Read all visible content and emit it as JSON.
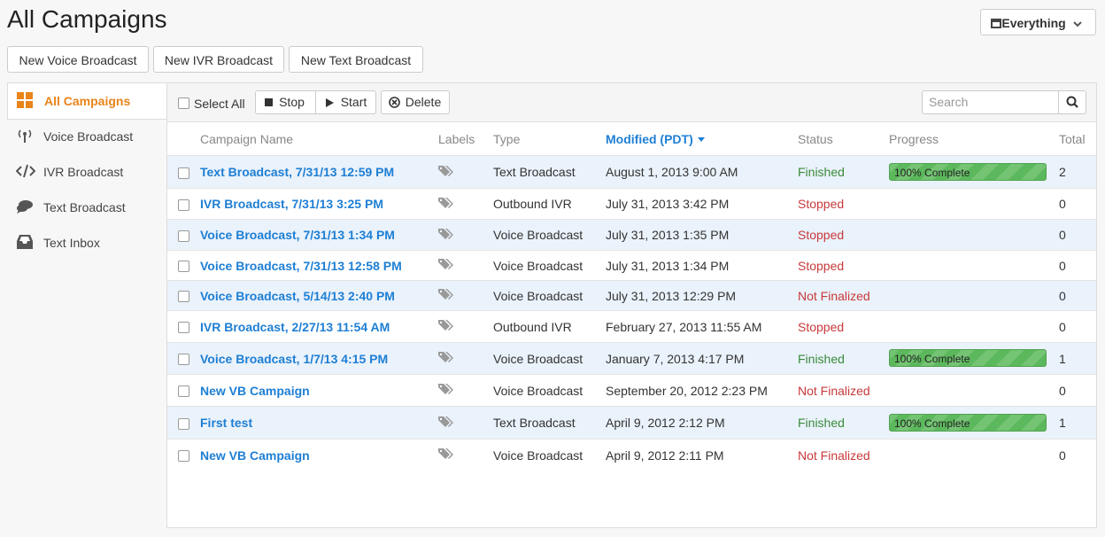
{
  "header": {
    "title": "All Campaigns",
    "filter": "Everything"
  },
  "buttons": [
    "New Voice Broadcast",
    "New IVR Broadcast",
    "New Text Broadcast"
  ],
  "sidebar": [
    "All Campaigns",
    "Voice Broadcast",
    "IVR Broadcast",
    "Text Broadcast",
    "Text Inbox"
  ],
  "toolbar": {
    "select_all": "Select All",
    "stop": "Stop",
    "start": "Start",
    "delete": "Delete",
    "search": "Search"
  },
  "table": {
    "columns": [
      "Campaign Name",
      "Labels",
      "Type",
      "Modified (PDT)",
      "Status",
      "Progress",
      "Total"
    ],
    "rows": [
      {
        "name": "Text Broadcast, 7/31/13 12:59 PM",
        "type": "Text Broadcast",
        "modified": "August 1, 2013 9:00 AM",
        "status": "Finished",
        "status_color": "#3b8a3b",
        "progress": "100% Complete",
        "total": 2
      },
      {
        "name": "IVR Broadcast, 7/31/13 3:25 PM",
        "type": "Outbound IVR",
        "modified": "July 31, 2013 3:42 PM",
        "status": "Stopped",
        "status_color": "#c8393b",
        "progress": null,
        "total": 0
      },
      {
        "name": "Voice Broadcast, 7/31/13 1:34 PM",
        "type": "Voice Broadcast",
        "modified": "July 31, 2013 1:35 PM",
        "status": "Stopped",
        "status_color": "#c8393b",
        "progress": null,
        "total": 0
      },
      {
        "name": "Voice Broadcast, 7/31/13 12:58 PM",
        "type": "Voice Broadcast",
        "modified": "July 31, 2013 1:34 PM",
        "status": "Stopped",
        "status_color": "#c8393b",
        "progress": null,
        "total": 0
      },
      {
        "name": "Voice Broadcast, 5/14/13 2:40 PM",
        "type": "Voice Broadcast",
        "modified": "July 31, 2013 12:29 PM",
        "status": "Not Finalized",
        "status_color": "#c8393b",
        "progress": null,
        "total": 0
      },
      {
        "name": "IVR Broadcast, 2/27/13 11:54 AM",
        "type": "Outbound IVR",
        "modified": "February 27, 2013 11:55 AM",
        "status": "Stopped",
        "status_color": "#c8393b",
        "progress": null,
        "total": 0
      },
      {
        "name": "Voice Broadcast, 1/7/13 4:15 PM",
        "type": "Voice Broadcast",
        "modified": "January 7, 2013 4:17 PM",
        "status": "Finished",
        "status_color": "#3b8a3b",
        "progress": "100% Complete",
        "total": 1
      },
      {
        "name": "New VB Campaign",
        "type": "Voice Broadcast",
        "modified": "September 20, 2012 2:23 PM",
        "status": "Not Finalized",
        "status_color": "#c8393b",
        "progress": null,
        "total": 0
      },
      {
        "name": "First test",
        "type": "Text Broadcast",
        "modified": "April 9, 2012 2:12 PM",
        "status": "Finished",
        "status_color": "#3b8a3b",
        "progress": "100% Complete",
        "total": 1
      },
      {
        "name": "New VB Campaign",
        "type": "Voice Broadcast",
        "modified": "April 9, 2012 2:11 PM",
        "status": "Not Finalized",
        "status_color": "#c8393b",
        "progress": null,
        "total": 0
      }
    ]
  }
}
